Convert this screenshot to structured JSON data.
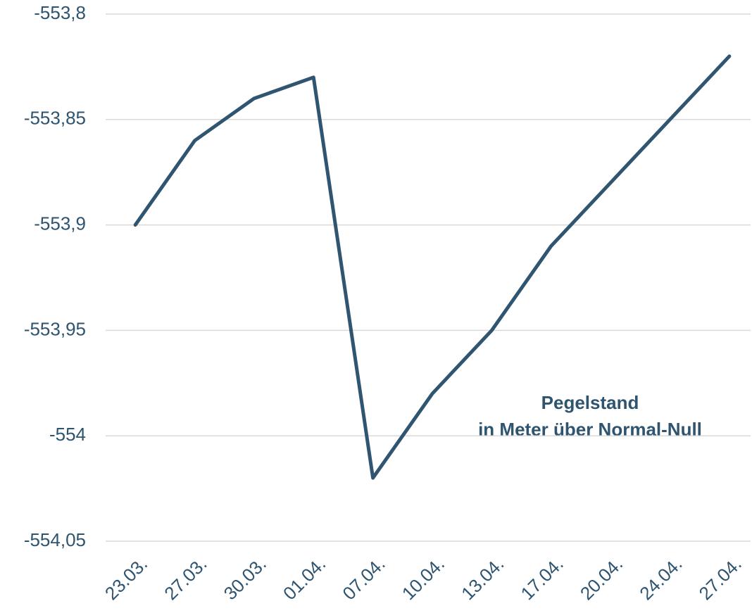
{
  "chart_data": {
    "type": "line",
    "categories": [
      "23.03.",
      "27.03.",
      "30.03.",
      "01.04.",
      "07.04.",
      "10.04.",
      "13.04.",
      "17.04.",
      "20.04.",
      "24.04.",
      "27.04."
    ],
    "series": [
      {
        "name": "Pegelstand",
        "color": "#2f5570",
        "values": [
          -553.9,
          -553.86,
          -553.84,
          -553.83,
          -554.02,
          -553.98,
          -553.95,
          -553.91,
          -553.88,
          -553.85,
          -553.82
        ]
      }
    ],
    "ylim": [
      -554.05,
      -553.8
    ],
    "yticks": [
      {
        "value": -553.8,
        "label": "-553,8"
      },
      {
        "value": -553.85,
        "label": "-553,85"
      },
      {
        "value": -553.9,
        "label": "-553,9"
      },
      {
        "value": -553.95,
        "label": "-553,95"
      },
      -554,
      {
        "value": -554.05,
        "label": "-554,05"
      }
    ],
    "grid": true,
    "annotation": [
      "Pegelstand",
      "in Meter über Normal-Null"
    ]
  }
}
